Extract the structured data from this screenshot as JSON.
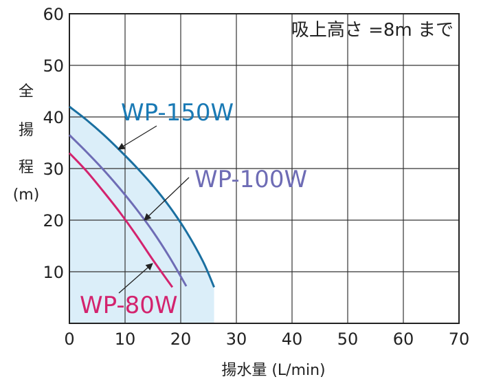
{
  "chart_data": {
    "type": "line",
    "xlabel": "揚水量 (L/min)",
    "ylabel": [
      "全",
      "揚",
      "程",
      "(m)"
    ],
    "note": "吸上高さ =8m まで",
    "xlim": [
      0,
      70
    ],
    "ylim": [
      0,
      60
    ],
    "x_ticks": [
      "0",
      "10",
      "20",
      "30",
      "40",
      "50",
      "60",
      "70"
    ],
    "y_ticks": [
      "10",
      "20",
      "30",
      "40",
      "50",
      "60"
    ],
    "grid": true,
    "area_fill": {
      "color": "#dbeef9",
      "x_max": 26
    },
    "series": [
      {
        "name": "WP-150W",
        "color": "#1a6fa0",
        "label_color": "#1a7ab5",
        "x": [
          0,
          3,
          6,
          9,
          12,
          15,
          18,
          21,
          24,
          26
        ],
        "y": [
          42,
          39.5,
          36.7,
          33.6,
          30.3,
          26.7,
          22.6,
          17.8,
          12,
          7
        ]
      },
      {
        "name": "WP-100W",
        "color": "#6e6cb5",
        "label_color": "#6e6cb5",
        "x": [
          0,
          3,
          6,
          9,
          12,
          15,
          18,
          21
        ],
        "y": [
          36.5,
          33.3,
          29.9,
          26.2,
          22.2,
          17.8,
          12.8,
          7.2
        ]
      },
      {
        "name": "WP-80W",
        "color": "#d3236e",
        "label_color": "#d3236e",
        "x": [
          0,
          3,
          6,
          9,
          12,
          15,
          18.5
        ],
        "y": [
          33,
          29.6,
          25.7,
          21.6,
          17.1,
          12.3,
          7
        ]
      }
    ]
  }
}
